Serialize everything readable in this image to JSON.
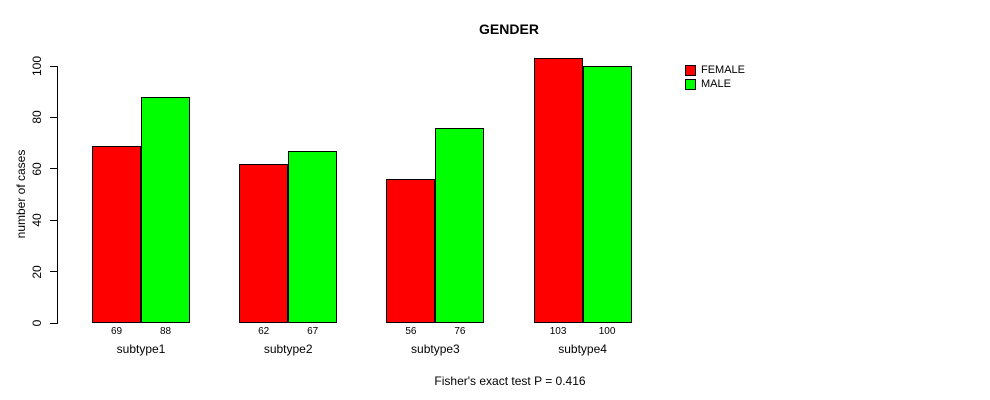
{
  "chart_data": {
    "type": "bar",
    "title": "GENDER",
    "xlabel": "",
    "ylabel": "number of cases",
    "categories": [
      "subtype1",
      "subtype2",
      "subtype3",
      "subtype4"
    ],
    "series": [
      {
        "name": "FEMALE",
        "color": "#FF0000",
        "values": [
          69,
          62,
          56,
          103
        ]
      },
      {
        "name": "MALE",
        "color": "#00FF00",
        "values": [
          88,
          67,
          76,
          100
        ]
      }
    ],
    "yticks": [
      0,
      20,
      40,
      60,
      80,
      100
    ],
    "ylim": [
      0,
      100
    ],
    "grid": false,
    "legend_position": "top-right",
    "bar_value_labels": true,
    "annotation": "Fisher's exact test P = 0.416"
  }
}
